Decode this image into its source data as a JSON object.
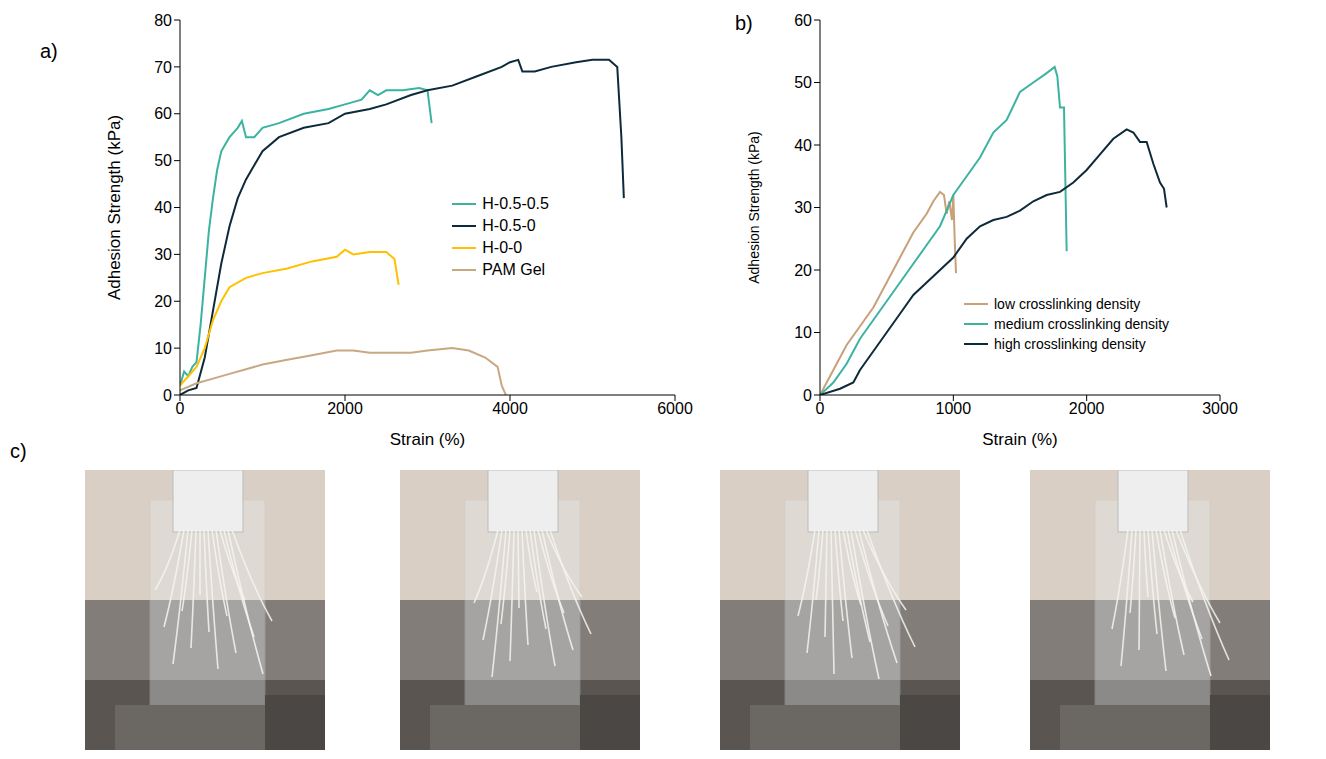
{
  "chart_data": [
    {
      "type": "line",
      "panel": "a)",
      "x_label": "Strain (%)",
      "y_label": "Adhesion Strength (kPa)",
      "xlim": [
        0,
        6000
      ],
      "xticks": [
        0,
        2000,
        4000,
        6000
      ],
      "ylim": [
        0,
        80
      ],
      "yticks": [
        0,
        10,
        20,
        30,
        40,
        50,
        60,
        70,
        80
      ],
      "grid": false,
      "legend": "right",
      "series": [
        {
          "name": "H-0.5-0.5",
          "color": "#3bb3a0",
          "x": [
            0,
            50,
            100,
            150,
            200,
            250,
            300,
            350,
            400,
            450,
            500,
            600,
            700,
            750,
            800,
            900,
            1000,
            1200,
            1500,
            1800,
            2000,
            2200,
            2300,
            2400,
            2500,
            2700,
            2900,
            3000,
            3050
          ],
          "values": [
            2,
            5,
            4,
            6,
            7,
            15,
            25,
            35,
            42,
            48,
            52,
            55,
            57,
            58.5,
            55,
            55,
            57,
            58,
            60,
            61,
            62,
            63,
            65,
            64,
            65,
            65,
            65.5,
            65,
            58
          ]
        },
        {
          "name": "H-0.5-0",
          "color": "#0d2a3a",
          "x": [
            0,
            100,
            200,
            300,
            400,
            500,
            600,
            700,
            800,
            900,
            1000,
            1200,
            1500,
            1800,
            2000,
            2300,
            2500,
            2800,
            3000,
            3300,
            3600,
            3900,
            4000,
            4100,
            4150,
            4300,
            4500,
            4800,
            5000,
            5200,
            5300,
            5350,
            5380
          ],
          "values": [
            0,
            1,
            1.5,
            8,
            18,
            28,
            36,
            42,
            46,
            49,
            52,
            55,
            57,
            58,
            60,
            61,
            62,
            64,
            65,
            66,
            68,
            70,
            71,
            71.5,
            69,
            69,
            70,
            71,
            71.5,
            71.5,
            70,
            55,
            42
          ]
        },
        {
          "name": "H-0-0",
          "color": "#ffc000",
          "x": [
            0,
            100,
            200,
            300,
            400,
            500,
            600,
            800,
            1000,
            1300,
            1600,
            1900,
            2000,
            2100,
            2300,
            2500,
            2600,
            2650
          ],
          "values": [
            2,
            4,
            6,
            10,
            16,
            20,
            23,
            25,
            26,
            27,
            28.5,
            29.5,
            31,
            30,
            30.5,
            30.5,
            29,
            23.5
          ]
        },
        {
          "name": "PAM Gel",
          "color": "#c8a882",
          "x": [
            0,
            200,
            400,
            600,
            800,
            1000,
            1300,
            1600,
            1900,
            2100,
            2300,
            2600,
            2800,
            3000,
            3300,
            3500,
            3700,
            3850,
            3900,
            3950
          ],
          "values": [
            1,
            2.5,
            3.5,
            4.5,
            5.5,
            6.5,
            7.5,
            8.5,
            9.5,
            9.5,
            9,
            9,
            9,
            9.5,
            10,
            9.5,
            8,
            6,
            2,
            0
          ]
        }
      ]
    },
    {
      "type": "line",
      "panel": "b)",
      "x_label": "Strain (%)",
      "y_label": "Adhesion Strength (kPa)",
      "xlim": [
        0,
        3000
      ],
      "xticks": [
        0,
        1000,
        2000,
        3000
      ],
      "ylim": [
        0,
        60
      ],
      "yticks": [
        0,
        10,
        20,
        30,
        40,
        50,
        60
      ],
      "grid": false,
      "legend": "bottom right",
      "series": [
        {
          "name": "low crosslinking density",
          "color": "#c8a07a",
          "x": [
            0,
            50,
            100,
            200,
            300,
            400,
            500,
            600,
            700,
            800,
            850,
            900,
            930,
            950,
            970,
            990,
            1000,
            1010,
            1020
          ],
          "values": [
            0,
            2,
            4,
            8,
            11,
            14,
            18,
            22,
            26,
            29,
            31,
            32.5,
            32,
            29,
            31,
            28,
            32,
            25,
            19.5
          ]
        },
        {
          "name": "medium crosslinking density",
          "color": "#3bb3a0",
          "x": [
            0,
            100,
            200,
            300,
            400,
            500,
            600,
            700,
            800,
            900,
            1000,
            1100,
            1200,
            1300,
            1400,
            1500,
            1600,
            1700,
            1760,
            1780,
            1800,
            1830,
            1850
          ],
          "values": [
            0,
            2,
            5,
            9,
            12,
            15,
            18,
            21,
            24,
            27,
            32,
            35,
            38,
            42,
            44,
            48.5,
            50,
            51.5,
            52.5,
            51,
            46,
            46,
            23
          ]
        },
        {
          "name": "high crosslinking density",
          "color": "#0d2a3a",
          "x": [
            0,
            150,
            250,
            300,
            400,
            500,
            600,
            700,
            800,
            900,
            1000,
            1100,
            1200,
            1300,
            1400,
            1500,
            1600,
            1700,
            1800,
            1900,
            2000,
            2100,
            2200,
            2300,
            2350,
            2400,
            2450,
            2500,
            2550,
            2580,
            2600
          ],
          "values": [
            0,
            1,
            2,
            4,
            7,
            10,
            13,
            16,
            18,
            20,
            22,
            25,
            27,
            28,
            28.5,
            29.5,
            31,
            32,
            32.5,
            34,
            36,
            38.5,
            41,
            42.5,
            42,
            40.5,
            40.5,
            37,
            34,
            33,
            30
          ]
        }
      ]
    }
  ],
  "photos": {
    "panel": "c)",
    "count": 4
  }
}
